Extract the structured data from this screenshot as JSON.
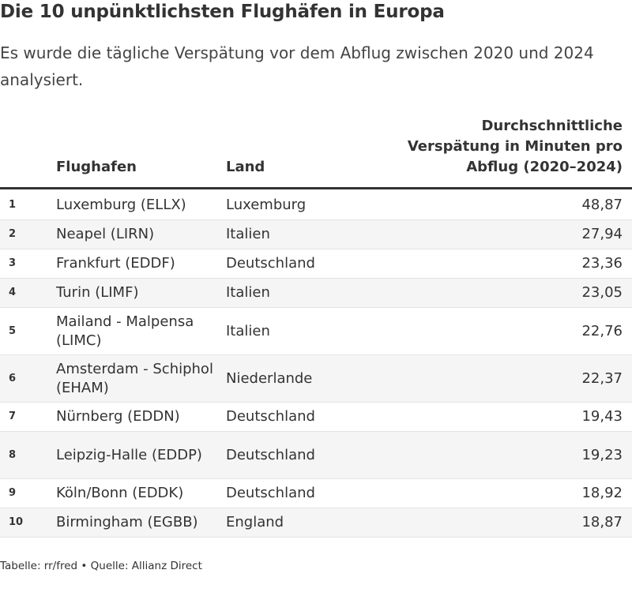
{
  "title": "Die 10 unpünktlichsten Flughäfen in Europa",
  "subtitle": "Es wurde die tägliche Verspätung vor dem Abflug zwischen 2020 und 2024 analysiert.",
  "footer": "Tabelle: rr/fred • Quelle: Allianz Direct",
  "chart_data": {
    "type": "table",
    "title": "Die 10 unpünktlichsten Flughäfen in Europa",
    "subtitle": "Es wurde die tägliche Verspätung vor dem Abflug zwischen 2020 und 2024 analysiert.",
    "columns": [
      "",
      "Flughafen",
      "Land",
      "Durchschnittliche Verspätung in Minuten pro Abflug (2020–2024)"
    ],
    "rows": [
      {
        "rank": "1",
        "airport": "Luxemburg (ELLX)",
        "country": "Luxemburg",
        "value": "48,87"
      },
      {
        "rank": "2",
        "airport": "Neapel (LIRN)",
        "country": "Italien",
        "value": "27,94"
      },
      {
        "rank": "3",
        "airport": "Frankfurt (EDDF)",
        "country": "Deutschland",
        "value": "23,36"
      },
      {
        "rank": "4",
        "airport": "Turin (LIMF)",
        "country": "Italien",
        "value": "23,05"
      },
      {
        "rank": "5",
        "airport": "Mailand - Malpensa (LIMC)",
        "country": "Italien",
        "value": "22,76"
      },
      {
        "rank": "6",
        "airport": "Amsterdam - Schiphol (EHAM)",
        "country": "Niederlande",
        "value": "22,37"
      },
      {
        "rank": "7",
        "airport": "Nürnberg (EDDN)",
        "country": "Deutschland",
        "value": "19,43"
      },
      {
        "rank": "8",
        "airport": "Leipzig-Halle (EDDP)",
        "country": "Deutschland",
        "value": "19,23"
      },
      {
        "rank": "9",
        "airport": "Köln/Bonn (EDDK)",
        "country": "Deutschland",
        "value": "18,92"
      },
      {
        "rank": "10",
        "airport": "Birmingham (EGBB)",
        "country": "England",
        "value": "18,87"
      }
    ],
    "source": "Tabelle: rr/fred • Quelle: Allianz Direct"
  }
}
